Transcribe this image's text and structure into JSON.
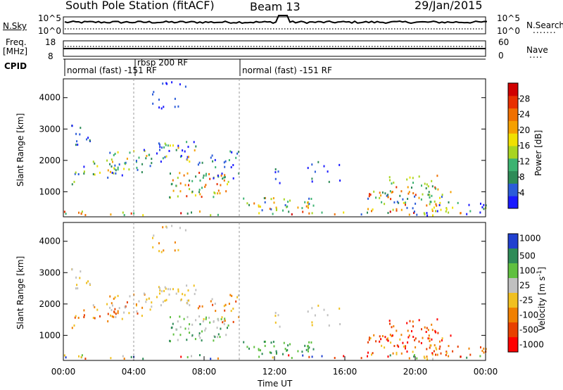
{
  "header": {
    "station": "South Pole Station (fitACF)",
    "beam": "Beam 13",
    "date": "29/Jan/2015"
  },
  "panels": {
    "nsky": {
      "label": "N.Sky",
      "ticks": [
        "10^5",
        "10^0"
      ],
      "right_label": "N.Search",
      "right_ticks": [
        "10^5",
        "10^0"
      ]
    },
    "freq": {
      "label_line1": "Freq.",
      "label_line2": "[MHz]",
      "ticks": [
        "18",
        "8"
      ],
      "right_label": "Nave",
      "right_ticks": [
        "60",
        "0"
      ]
    },
    "cpid": {
      "label": "CPID",
      "segments": [
        {
          "text": "normal (fast) -151 RF",
          "start_h": 0
        },
        {
          "text": "rbsp 200 RF",
          "start_h": 4
        },
        {
          "text": "normal (fast) -151 RF",
          "start_h": 10
        }
      ]
    }
  },
  "chart_data": [
    {
      "type": "heatmap",
      "name": "power",
      "ylabel": "Slant Range [km]",
      "ylim": [
        200,
        4600
      ],
      "xlim_hours": [
        0,
        24
      ],
      "yticks": [
        1000,
        2000,
        3000,
        4000
      ],
      "colorbar": {
        "label": "Power [dB]",
        "ticks": [
          4,
          8,
          12,
          16,
          20,
          24,
          28
        ],
        "range": [
          0,
          32
        ]
      }
    },
    {
      "type": "heatmap",
      "name": "velocity",
      "ylabel": "Slant Range [km]",
      "xlabel": "Time UT",
      "ylim": [
        200,
        4600
      ],
      "xlim_hours": [
        0,
        24
      ],
      "yticks": [
        1000,
        2000,
        3000,
        4000
      ],
      "xticks": [
        "00:00",
        "04:00",
        "08:00",
        "12:00",
        "16:00",
        "20:00",
        "00:00"
      ],
      "colorbar": {
        "label": "Velocity [m s^-1]",
        "ticks": [
          "1000",
          "500",
          "100",
          "25",
          "-25",
          "-100",
          "-500",
          "-1000"
        ]
      }
    }
  ],
  "colors": {
    "power_scale": [
      "#1a1aff",
      "#2b5cd9",
      "#2e8b57",
      "#3cb371",
      "#a8d520",
      "#f0e000",
      "#f5a000",
      "#f07000",
      "#e83000",
      "#d00000"
    ],
    "velocity_scale": [
      "#2040d0",
      "#2e8b57",
      "#60c040",
      "#c0c0c0",
      "#f0c020",
      "#f08000",
      "#e84000",
      "#ff0000"
    ]
  }
}
